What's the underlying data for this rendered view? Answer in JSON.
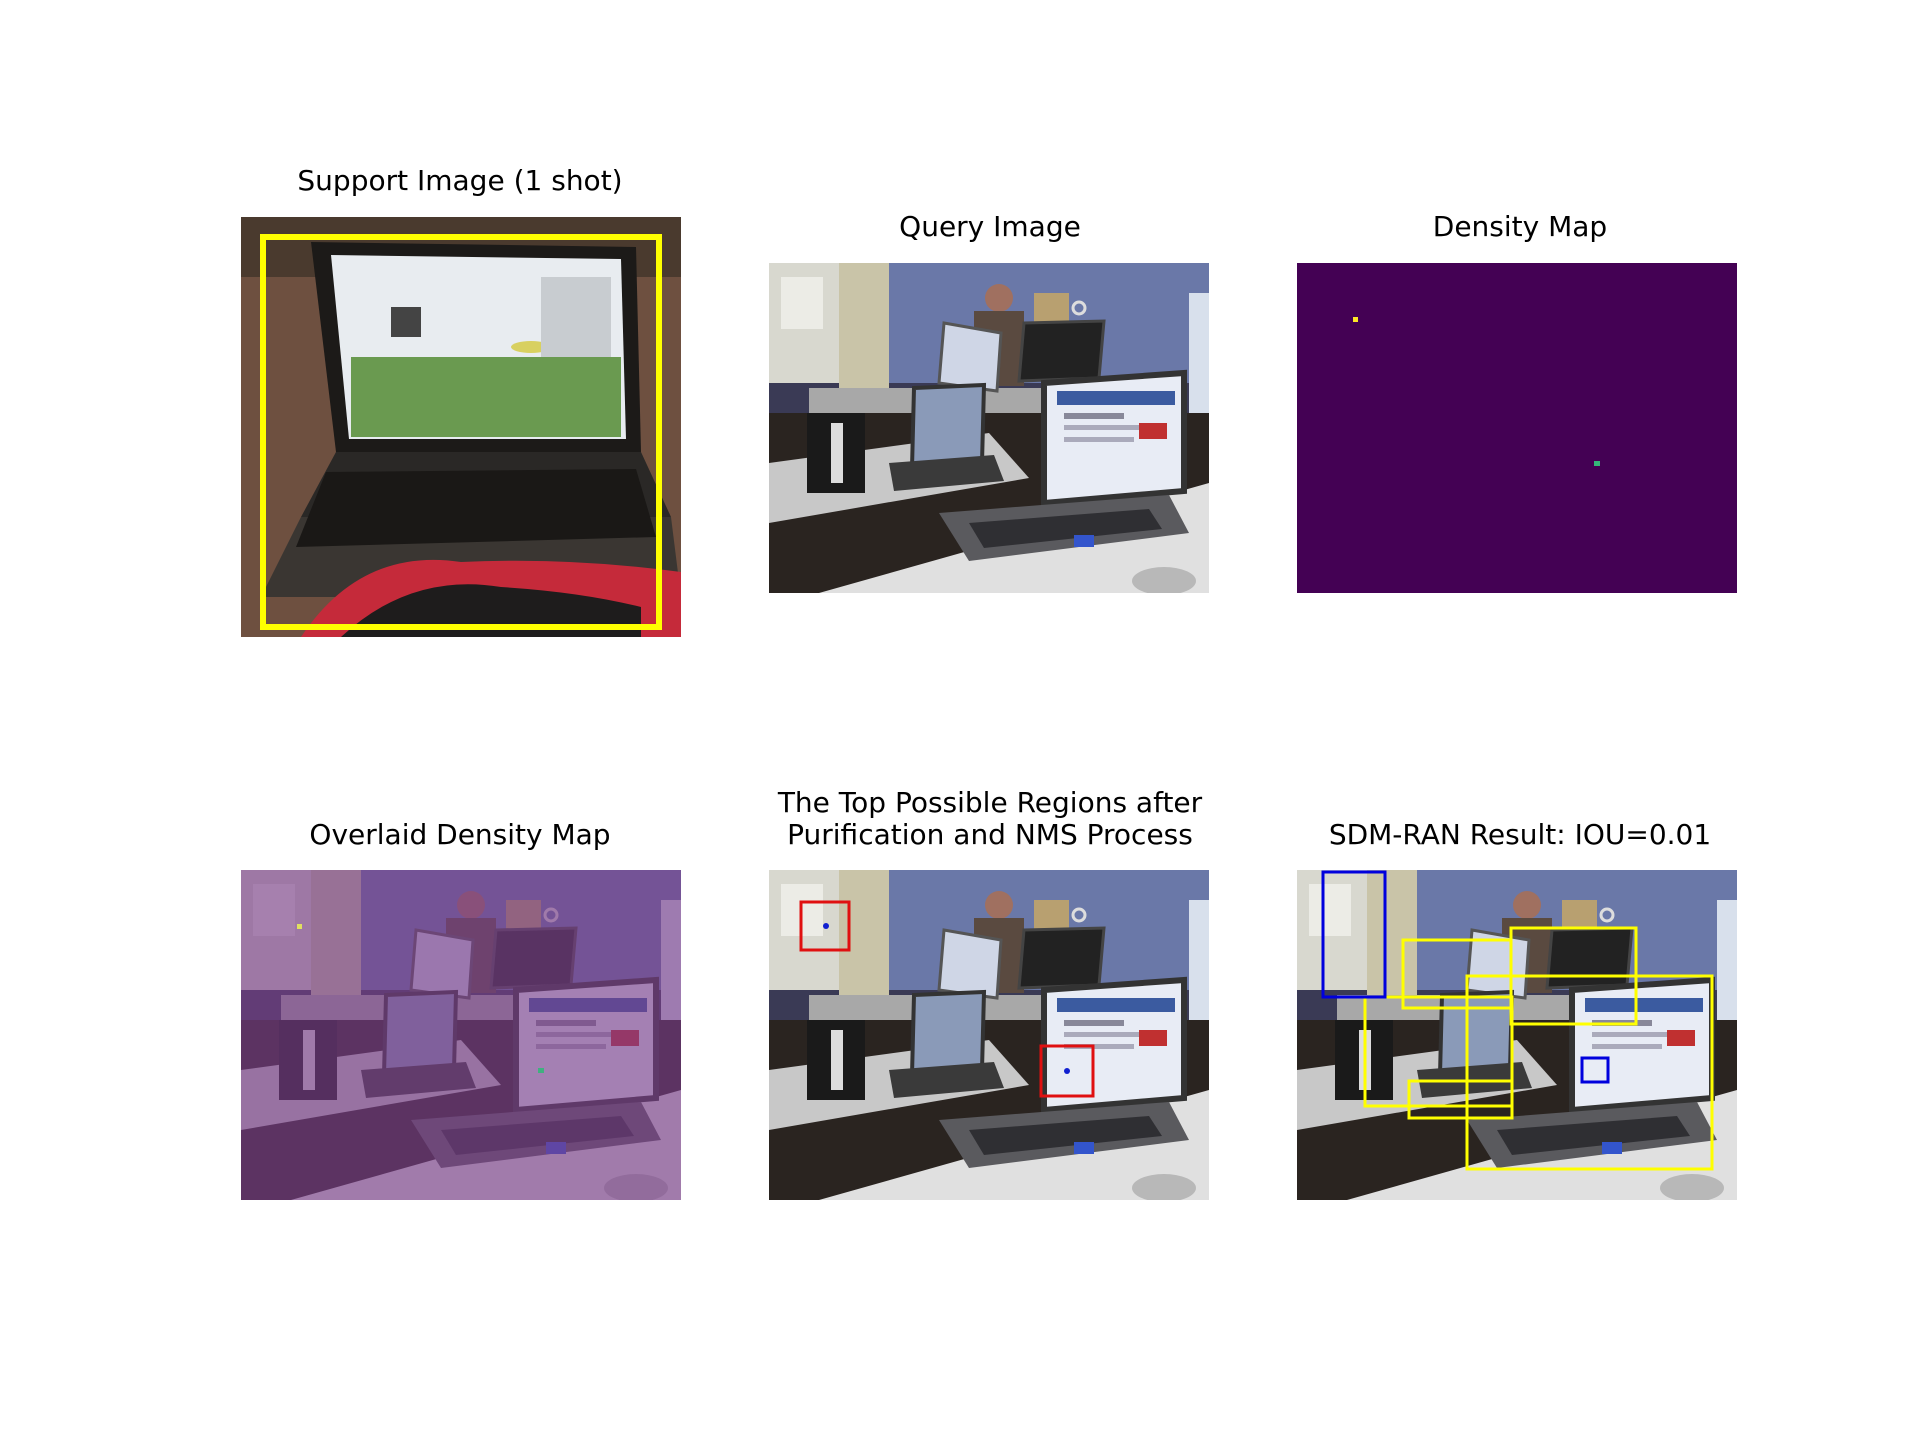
{
  "panels": {
    "support": {
      "title": "Support Image (1 shot)"
    },
    "query": {
      "title": "Query Image"
    },
    "density": {
      "title": "Density Map"
    },
    "overlaid": {
      "title": "Overlaid Density Map"
    },
    "regions": {
      "title": "The Top Possible Regions after\nPurification and NMS Process"
    },
    "result": {
      "title": "SDM-RAN Result: IOU=0.01"
    }
  },
  "colors": {
    "density_background": "#440154",
    "density_peak_high": "#fde725",
    "density_peak_mid": "#35b779",
    "box_support": "#ffff00",
    "box_region": "#e01010",
    "box_prediction": "#ffff00",
    "box_ground_truth": "#0000dd",
    "overlay_tint": "#7a3d8a"
  },
  "icons": {
    "support": "laptop-photo",
    "query": "office-laptops-photo"
  }
}
